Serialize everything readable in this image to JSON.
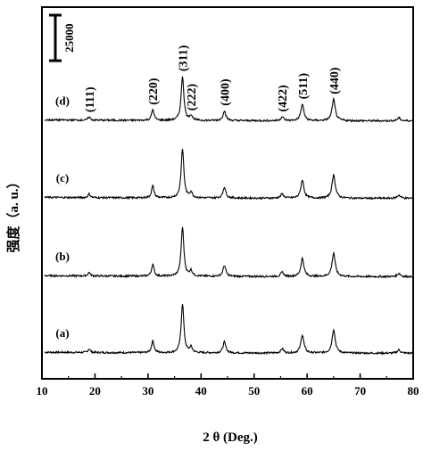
{
  "chart_data": {
    "type": "line",
    "xlabel": "2 θ (Deg.)",
    "ylabel": "强度（a. u.）",
    "xlim": [
      10,
      80
    ],
    "x_ticks": [
      "10",
      "20",
      "30",
      "40",
      "50",
      "60",
      "70",
      "80"
    ],
    "scale_bar": {
      "label": "25000",
      "value": 25000
    },
    "y_range": [
      -14000,
      190000
    ],
    "baseline_offsets": {
      "a": 0,
      "b": 42000,
      "c": 85000,
      "d": 127500
    },
    "peaks": [
      {
        "label": "(111)",
        "x": 18.9,
        "height": 2000,
        "width": 0.25
      },
      {
        "label": "(220)",
        "x": 30.9,
        "height": 6500,
        "width": 0.28
      },
      {
        "label": "(311)",
        "x": 36.5,
        "height": 27000,
        "width": 0.3
      },
      {
        "label": "(222)",
        "x": 38.1,
        "height": 3000,
        "width": 0.3
      },
      {
        "label": "(400)",
        "x": 44.4,
        "height": 6000,
        "width": 0.32
      },
      {
        "label": "(422)",
        "x": 55.3,
        "height": 2300,
        "width": 0.32
      },
      {
        "label": "(511)",
        "x": 59.1,
        "height": 10000,
        "width": 0.34
      },
      {
        "label": "(440)",
        "x": 65.0,
        "height": 13000,
        "width": 0.36
      },
      {
        "label": "",
        "x": 77.3,
        "height": 1800,
        "width": 0.35
      }
    ],
    "series": [
      {
        "name": "(a)",
        "offset": 0
      },
      {
        "name": "(b)",
        "offset": 42000
      },
      {
        "name": "(c)",
        "offset": 85000
      },
      {
        "name": "(d)",
        "offset": 127500
      }
    ],
    "grid": false,
    "legend": "none"
  }
}
